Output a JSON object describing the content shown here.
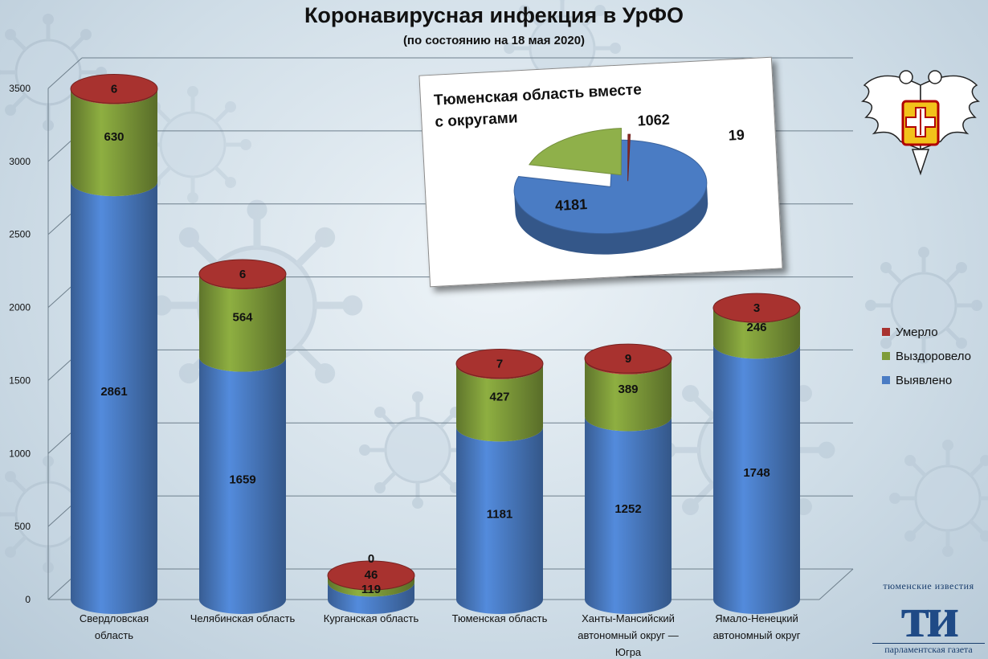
{
  "header": {
    "title": "Коронавирусная инфекция в УрФО",
    "subtitle": "(по состоянию на 18 мая 2020)"
  },
  "chart_data": [
    {
      "type": "bar",
      "stacked": true,
      "title": "Коронавирусная инфекция в УрФО",
      "subtitle": "(по состоянию на 18 мая 2020)",
      "categories": [
        "Свердловская область",
        "Челябинская область",
        "Курганская область",
        "Тюменская область",
        "Ханты-Мансийский автономный округ — Югра",
        "Ямало-Ненецкий автономный округ"
      ],
      "category_lines": [
        [
          "Свердловская",
          "область"
        ],
        [
          "Челябинская область"
        ],
        [
          "Курганская область"
        ],
        [
          "Тюменская область"
        ],
        [
          "Ханты-Мансийский",
          "автономный округ —",
          "Югра"
        ],
        [
          "Ямало-Ненецкий",
          "автономный округ"
        ]
      ],
      "series": [
        {
          "name": "Выявлено",
          "color": "#4a7cc4",
          "values": [
            2861,
            1659,
            119,
            1181,
            1252,
            1748
          ]
        },
        {
          "name": "Выздоровело",
          "color": "#7f9c3a",
          "values": [
            630,
            564,
            46,
            427,
            389,
            246
          ]
        },
        {
          "name": "Умерло",
          "color": "#a8322f",
          "values": [
            6,
            6,
            0,
            7,
            9,
            3
          ]
        }
      ],
      "yticks": [
        "0",
        "500",
        "1000",
        "1500",
        "2000",
        "2500",
        "3000",
        "3500"
      ],
      "ylim": [
        0,
        3500
      ],
      "grid": true,
      "legend_position": "right"
    },
    {
      "type": "pie",
      "title": "Тюменская область вместе с округами",
      "slices": [
        {
          "label": "4181",
          "value": 4181,
          "color": "#4a7cc4"
        },
        {
          "label": "1062",
          "value": 1062,
          "color": "#8fb04a"
        },
        {
          "label": "19",
          "value": 19,
          "color": "#8e2a26"
        }
      ]
    }
  ],
  "legend": [
    {
      "label": "Умерло",
      "color": "#a8322f"
    },
    {
      "label": "Выздоровело",
      "color": "#7f9c3a"
    },
    {
      "label": "Выявлено",
      "color": "#4a7cc4"
    }
  ],
  "brand": {
    "top": "тюменские известия",
    "logo": "ти",
    "bottom": "парламентская газета"
  },
  "icons": [
    "virus-icon",
    "double-headed-eagle-icon"
  ]
}
